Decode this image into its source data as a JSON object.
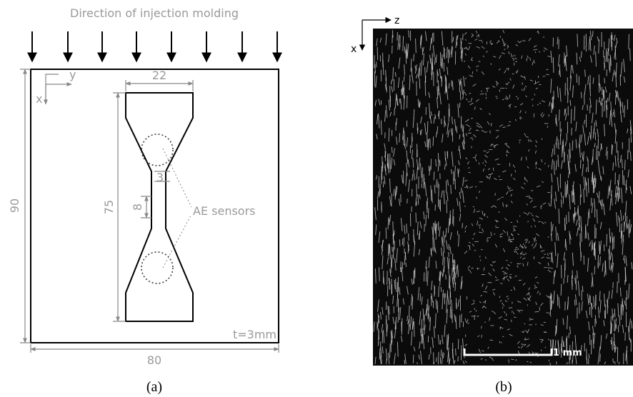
{
  "panel_a": {
    "heading": "Direction of injection molding",
    "axis_y": "y",
    "axis_x": "x",
    "width_label": "22",
    "height_label": "90",
    "length_label": "75",
    "radius_label": "3",
    "gauge_label": "8",
    "sensor_label": "AE sensors",
    "thickness_label": "t=3mm",
    "plate_width_label": "80",
    "caption": "(a)"
  },
  "panel_b": {
    "axis_z": "z",
    "axis_x": "x",
    "scale_label": "1 mm",
    "caption": "(b)"
  }
}
